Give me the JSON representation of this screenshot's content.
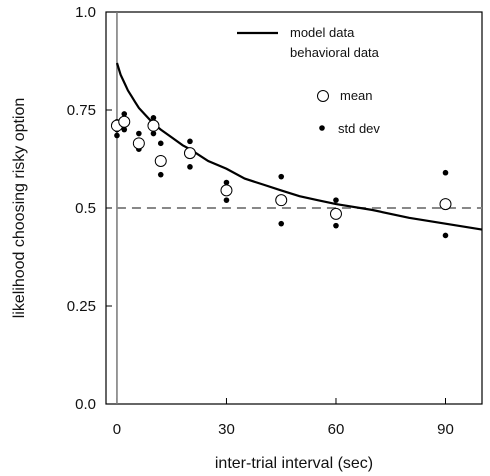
{
  "chart_data": {
    "type": "scatter",
    "xlabel": "inter-trial interval (sec)",
    "ylabel": "likelihood choosing risky option",
    "xlim": [
      -3,
      100
    ],
    "ylim": [
      0,
      1.0
    ],
    "x_ticks": [
      0,
      30,
      60,
      90
    ],
    "x_tick_labels": [
      "0",
      "30",
      "60",
      "90"
    ],
    "y_ticks": [
      0,
      0.25,
      0.5,
      0.75,
      1.0
    ],
    "y_tick_labels": [
      "0.0",
      "0.25",
      "0.5",
      "0.75",
      "1.0"
    ],
    "reference_lines": {
      "vertical_x": 0,
      "horizontal_dashed_y": 0.5
    },
    "legend": {
      "model_label": "model data",
      "behavioral_label": "behavioral data",
      "mean_label": "mean",
      "std_label": "std dev"
    },
    "series": [
      {
        "name": "model data",
        "type": "line",
        "x": [
          0,
          1,
          2,
          3,
          4,
          5,
          6,
          8,
          10,
          12,
          15,
          18,
          20,
          25,
          30,
          35,
          40,
          45,
          50,
          55,
          60,
          70,
          80,
          90,
          100
        ],
        "y": [
          0.87,
          0.84,
          0.82,
          0.8,
          0.785,
          0.77,
          0.755,
          0.735,
          0.715,
          0.7,
          0.68,
          0.66,
          0.65,
          0.62,
          0.6,
          0.575,
          0.56,
          0.545,
          0.53,
          0.52,
          0.51,
          0.495,
          0.475,
          0.46,
          0.445
        ]
      },
      {
        "name": "mean",
        "type": "scatter",
        "x": [
          0,
          2,
          6,
          10,
          12,
          20,
          30,
          45,
          60,
          90
        ],
        "y": [
          0.71,
          0.72,
          0.665,
          0.71,
          0.62,
          0.64,
          0.545,
          0.52,
          0.485,
          0.51
        ]
      },
      {
        "name": "std dev",
        "type": "scatter",
        "x": [
          0,
          0,
          0,
          2,
          2,
          6,
          6,
          10,
          10,
          12,
          12,
          20,
          20,
          30,
          30,
          45,
          45,
          60,
          60,
          90,
          90
        ],
        "y": [
          0.72,
          0.7,
          0.685,
          0.74,
          0.7,
          0.69,
          0.65,
          0.73,
          0.69,
          0.665,
          0.585,
          0.67,
          0.605,
          0.565,
          0.52,
          0.58,
          0.46,
          0.52,
          0.455,
          0.59,
          0.43
        ]
      }
    ]
  }
}
